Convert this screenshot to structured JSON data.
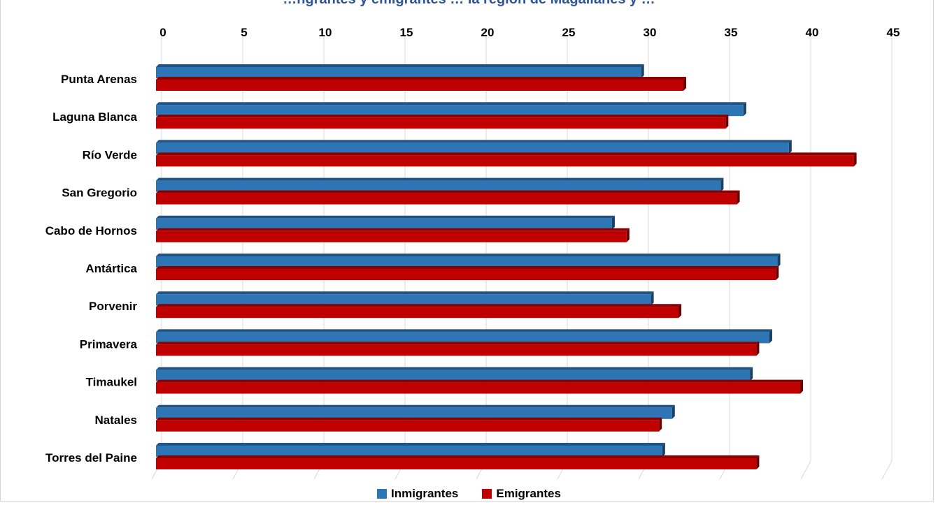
{
  "chart_data": {
    "type": "bar",
    "orientation": "horizontal",
    "title": "…ngrantes y emigrantes … la región de Magallanes y …",
    "categories": [
      "Punta Arenas",
      "Laguna Blanca",
      "Río Verde",
      "San Gregorio",
      "Cabo de Hornos",
      "Antártica",
      "Porvenir",
      "Primavera",
      "Timaukel",
      "Natales",
      "Torres del Paine"
    ],
    "series": [
      {
        "name": "Inmigrantes",
        "color": "#2e75b6",
        "values": [
          29.9,
          36.2,
          39,
          34.8,
          28.1,
          38.3,
          30.5,
          37.8,
          36.6,
          31.8,
          31.2
        ]
      },
      {
        "name": "Emigrantes",
        "color": "#c00000",
        "values": [
          32.5,
          35.1,
          43,
          35.8,
          29,
          38.2,
          32.2,
          37,
          39.7,
          31,
          37
        ]
      }
    ],
    "xticks": [
      "0",
      "5",
      "10",
      "15",
      "20",
      "25",
      "30",
      "35",
      "40",
      "45"
    ],
    "xlim": [
      0,
      45
    ],
    "xaxis_position": "top",
    "grid": true,
    "legend_position": "bottom",
    "xlabel": "",
    "ylabel": ""
  }
}
